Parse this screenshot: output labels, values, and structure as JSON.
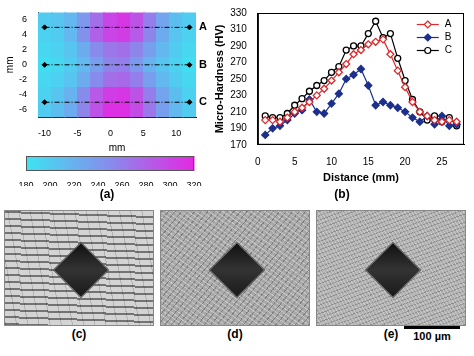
{
  "chart_data": [
    {
      "type": "heatmap",
      "label": "(a)",
      "x_label": "mm",
      "y_label": "mm",
      "xlim": [
        -11,
        13
      ],
      "xticks": [
        -10,
        -5,
        0,
        5,
        10
      ],
      "ylim": [
        -7,
        7
      ],
      "yticks": [
        -6,
        -4,
        -2,
        0,
        2,
        4,
        6
      ],
      "grid": false,
      "x": [
        -10,
        -8,
        -6,
        -4,
        -2,
        0,
        2,
        4,
        6,
        8,
        10,
        12
      ],
      "y": [
        6,
        4,
        2,
        0,
        -2,
        -4,
        -6
      ],
      "cells": [
        [
          200,
          205,
          215,
          240,
          270,
          300,
          310,
          290,
          260,
          230,
          210,
          200
        ],
        [
          195,
          200,
          215,
          245,
          280,
          300,
          305,
          285,
          255,
          225,
          205,
          195
        ],
        [
          190,
          195,
          205,
          225,
          250,
          265,
          270,
          255,
          235,
          215,
          200,
          190
        ],
        [
          185,
          190,
          200,
          215,
          235,
          255,
          260,
          240,
          220,
          205,
          195,
          185
        ],
        [
          190,
          195,
          205,
          225,
          250,
          270,
          275,
          260,
          235,
          215,
          200,
          190
        ],
        [
          195,
          205,
          220,
          250,
          285,
          305,
          310,
          290,
          260,
          230,
          210,
          195
        ],
        [
          200,
          210,
          225,
          255,
          290,
          315,
          315,
          295,
          265,
          235,
          215,
          200
        ]
      ],
      "lines": [
        {
          "name": "A",
          "y": 5
        },
        {
          "name": "B",
          "y": 0
        },
        {
          "name": "C",
          "y": -5
        }
      ],
      "colorbar": {
        "range": [
          180,
          320
        ],
        "ticks": [
          180,
          200,
          220,
          240,
          260,
          280,
          300,
          320
        ]
      }
    },
    {
      "type": "line",
      "label": "(b)",
      "x_label": "Distance (mm)",
      "y_label": "Micro-Hardness (HV)",
      "xlim": [
        0,
        28
      ],
      "xticks": [
        0,
        5,
        10,
        15,
        20,
        25
      ],
      "ylim": [
        170,
        330
      ],
      "yticks": [
        170,
        190,
        210,
        230,
        250,
        270,
        290,
        310,
        330
      ],
      "grid": false,
      "legend": "upper right",
      "x": [
        1,
        2,
        3,
        4,
        5,
        6,
        7,
        8,
        9,
        10,
        11,
        12,
        13,
        14,
        15,
        16,
        17,
        18,
        19,
        20,
        21,
        22,
        23,
        24,
        25,
        26,
        27
      ],
      "series": [
        {
          "name": "A",
          "color": "#e0282a",
          "marker": "diamond_open",
          "values": [
            200,
            200,
            198,
            203,
            210,
            215,
            222,
            230,
            238,
            248,
            258,
            268,
            280,
            285,
            292,
            295,
            298,
            280,
            260,
            240,
            222,
            210,
            205,
            200,
            198,
            200,
            198
          ]
        },
        {
          "name": "B",
          "color": "#1c2f8c",
          "marker": "diamond",
          "values": [
            182,
            190,
            193,
            200,
            208,
            212,
            225,
            210,
            208,
            220,
            232,
            250,
            255,
            262,
            242,
            218,
            222,
            218,
            215,
            210,
            203,
            198,
            205,
            195,
            205,
            193,
            195
          ]
        },
        {
          "name": "C",
          "color": "#000000",
          "marker": "circle_open",
          "values": [
            205,
            203,
            203,
            208,
            218,
            226,
            235,
            242,
            248,
            258,
            265,
            285,
            290,
            290,
            305,
            320,
            300,
            305,
            275,
            248,
            225,
            210,
            200,
            205,
            198,
            203,
            193
          ]
        }
      ]
    }
  ],
  "micrographs": {
    "panels": [
      "(c)",
      "(d)",
      "(e)"
    ],
    "scale_bar": "100 µm"
  }
}
